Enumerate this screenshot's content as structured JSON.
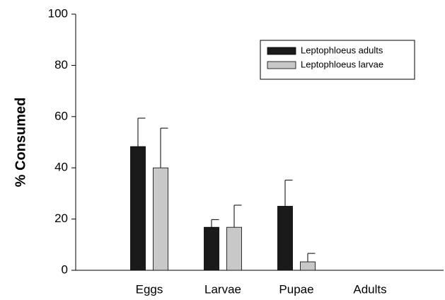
{
  "chart_data": {
    "type": "bar",
    "y_label": "% Consumed",
    "categories": [
      "Eggs",
      "Larvae",
      "Pupae",
      "Adults"
    ],
    "series": [
      {
        "name": "Leptophloeus adults",
        "color": "#1a1a1a",
        "values": [
          48.3,
          16.8,
          25,
          0
        ],
        "errors": [
          11.1,
          3,
          10.2,
          0
        ]
      },
      {
        "name": "Leptophloeus larvae",
        "color": "#c8c8c8",
        "values": [
          40,
          16.8,
          3.3,
          0
        ],
        "errors": [
          15.5,
          8.6,
          3.3,
          0
        ]
      }
    ],
    "ylim": [
      0,
      100
    ],
    "yticks": [
      0,
      20,
      40,
      60,
      80,
      100
    ],
    "legend": "upper right"
  }
}
